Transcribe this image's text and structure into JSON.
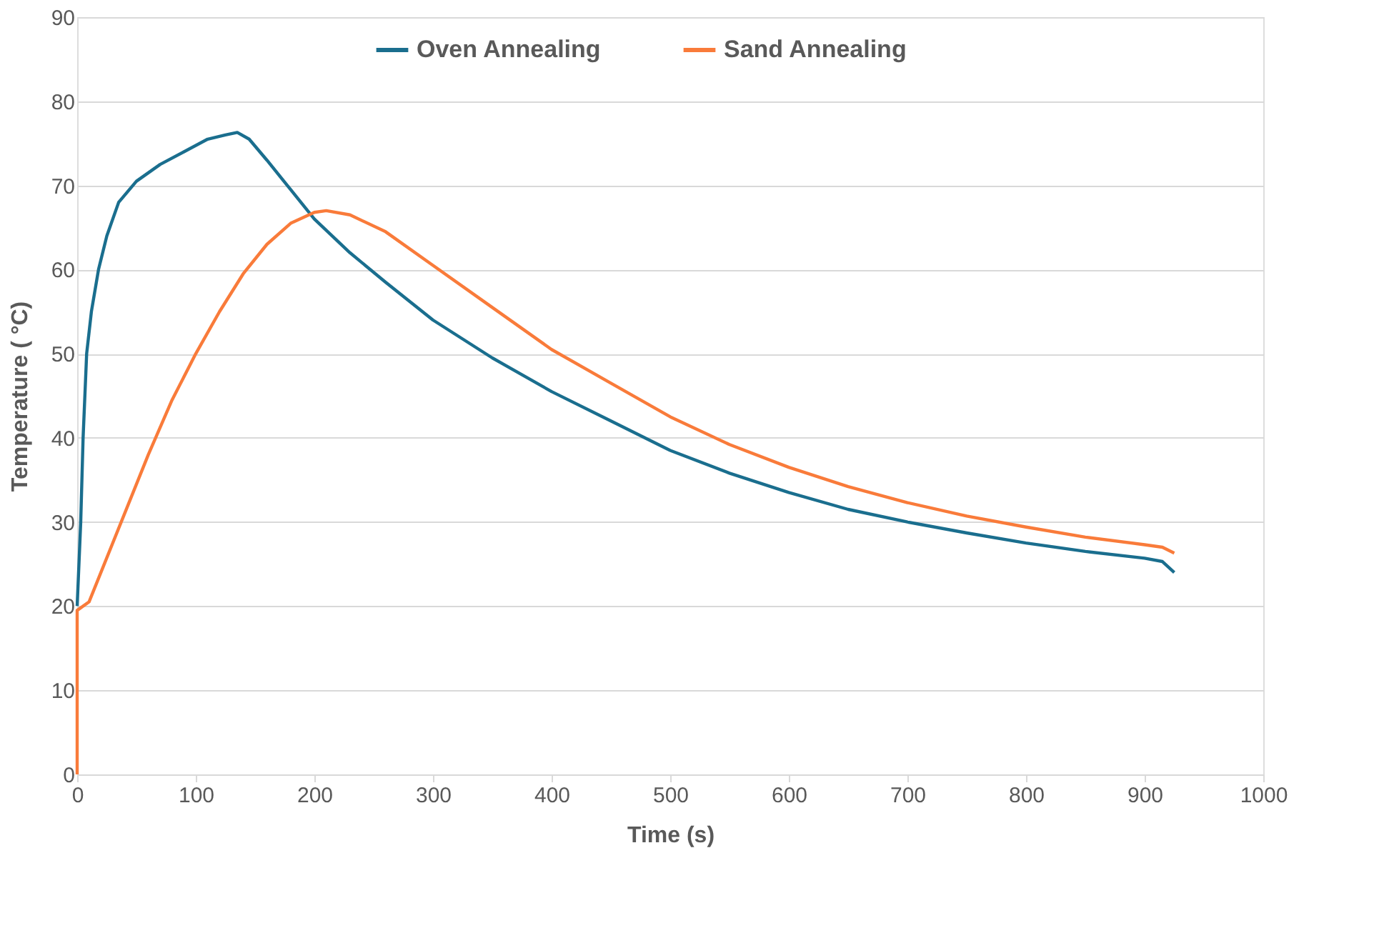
{
  "chart_data": {
    "type": "line",
    "xlabel": "Time (s)",
    "ylabel": "Temperature ( °C)",
    "xlim": [
      0,
      1000
    ],
    "xticks": [
      0,
      100,
      200,
      300,
      400,
      500,
      600,
      700,
      800,
      900,
      1000
    ],
    "ylim": [
      0,
      90
    ],
    "yticks": [
      0,
      10,
      20,
      30,
      40,
      50,
      60,
      70,
      80,
      90
    ],
    "grid": "y",
    "legend": "top",
    "marker": "none",
    "line_style": "solid",
    "series": [
      {
        "name": "Oven Annealing",
        "color": "#1a6e8e",
        "x": [
          0,
          3,
          5,
          8,
          12,
          18,
          25,
          35,
          50,
          70,
          90,
          110,
          125,
          135,
          145,
          160,
          180,
          200,
          230,
          260,
          300,
          350,
          400,
          450,
          500,
          550,
          600,
          650,
          700,
          750,
          800,
          850,
          900,
          915,
          925
        ],
        "values": [
          20,
          30,
          40,
          50,
          55,
          60,
          64,
          68,
          70.5,
          72.5,
          74,
          75.5,
          76,
          76.3,
          75.5,
          73,
          69.5,
          66,
          62,
          58.5,
          54,
          49.5,
          45.5,
          42,
          38.5,
          35.8,
          33.5,
          31.5,
          30,
          28.7,
          27.5,
          26.5,
          25.7,
          25.3,
          24
        ]
      },
      {
        "name": "Sand Annealing",
        "color": "#f97b3a",
        "x": [
          0,
          0,
          10,
          20,
          40,
          60,
          80,
          100,
          120,
          140,
          160,
          180,
          200,
          210,
          230,
          260,
          300,
          350,
          400,
          450,
          500,
          550,
          600,
          650,
          700,
          750,
          800,
          850,
          900,
          915,
          925
        ],
        "values": [
          0,
          19.5,
          20.5,
          24,
          31,
          38,
          44.5,
          50,
          55,
          59.5,
          63,
          65.5,
          66.8,
          67,
          66.5,
          64.5,
          60.5,
          55.5,
          50.5,
          46.5,
          42.5,
          39.2,
          36.5,
          34.2,
          32.3,
          30.7,
          29.4,
          28.2,
          27.3,
          27,
          26.3
        ]
      }
    ]
  }
}
